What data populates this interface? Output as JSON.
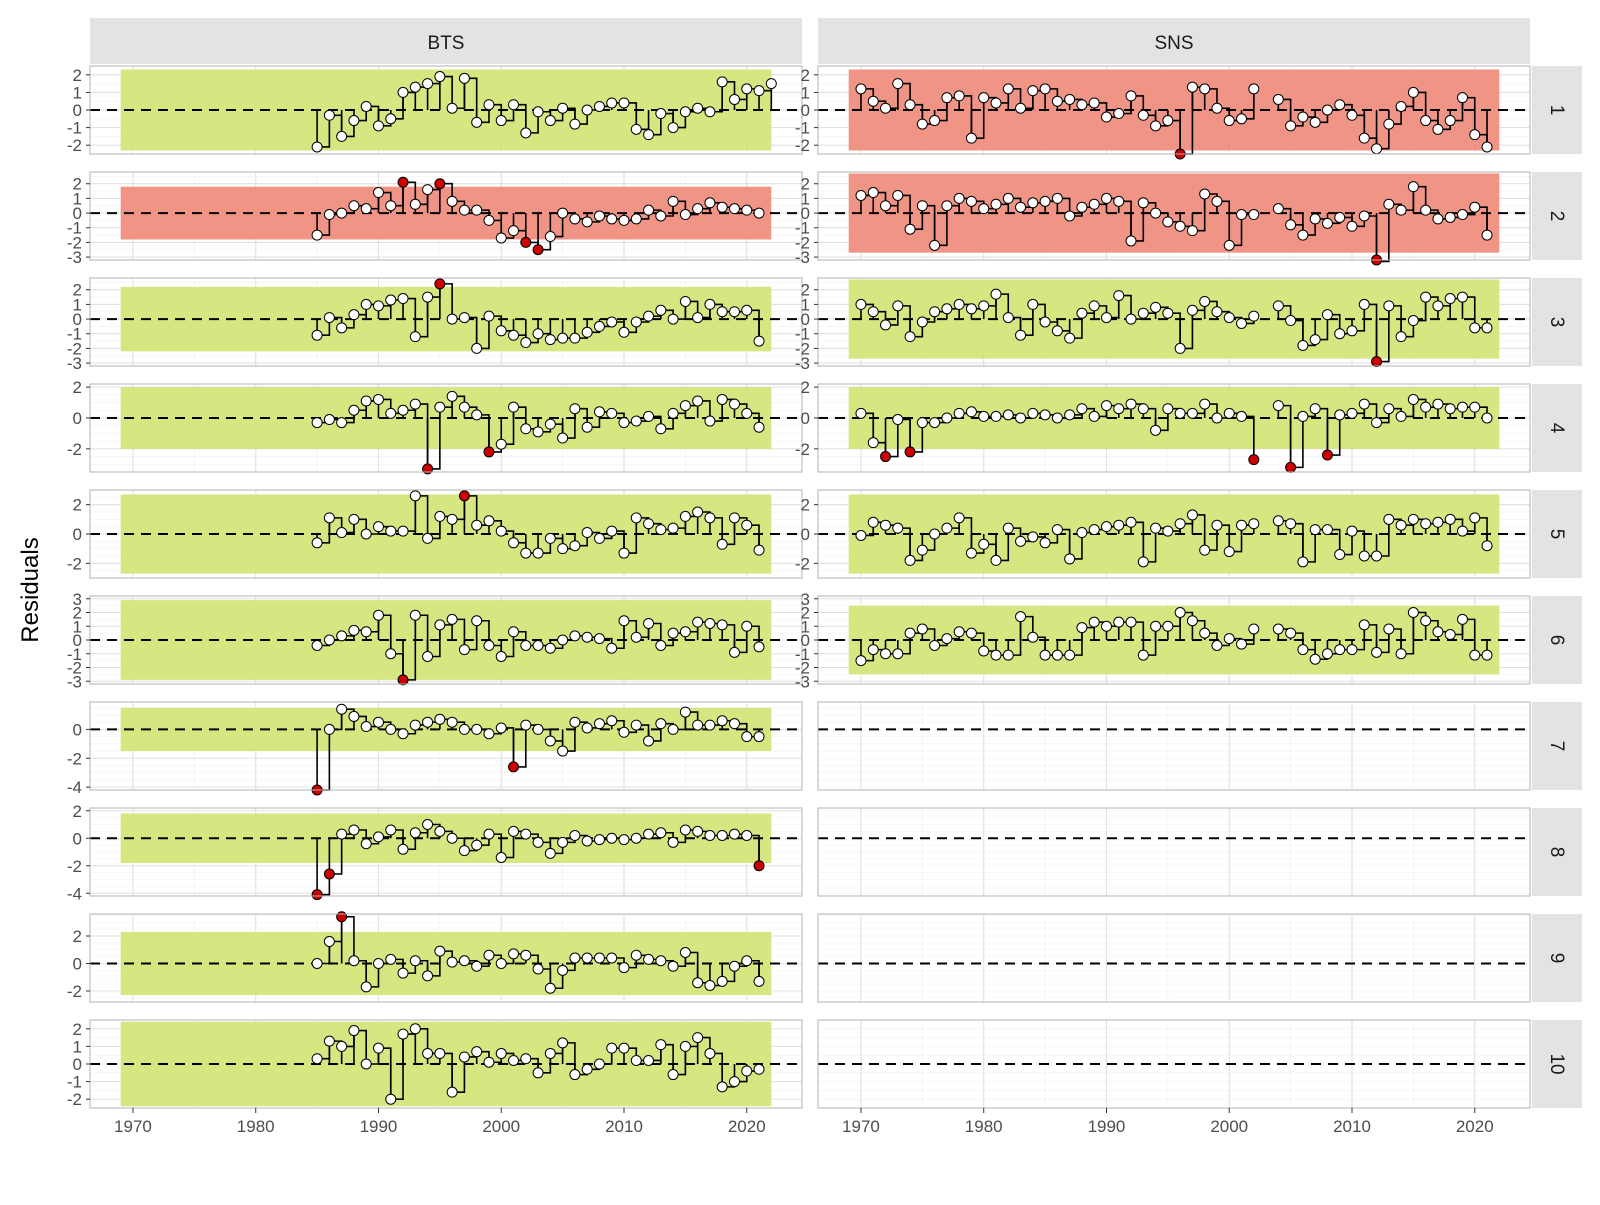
{
  "chart_data": {
    "type": "faceted-lollipop",
    "ylabel": "Residuals",
    "columns": [
      "BTS",
      "SNS"
    ],
    "rows": [
      "1",
      "2",
      "3",
      "4",
      "5",
      "6",
      "7",
      "8",
      "9",
      "10"
    ],
    "x_ticks": [
      1970,
      1980,
      1990,
      2000,
      2010,
      2020
    ],
    "xlim": [
      1966.5,
      2024.5
    ],
    "colors": {
      "ok": "#d4e57a",
      "bad": "#ef8e80",
      "outlier": "#cc0000",
      "point": "#ffffff",
      "strip": "#e3e3e3"
    },
    "panels": [
      {
        "survey": "BTS",
        "age": "1",
        "ylim": [
          -2.5,
          2.5
        ],
        "y_ticks": [
          -2,
          -1,
          0,
          1,
          2
        ],
        "band": [
          -2.3,
          2.3
        ],
        "status": "ok",
        "start": 1985,
        "values": [
          -2.1,
          -0.3,
          -1.5,
          -0.6,
          0.2,
          -0.9,
          -0.5,
          1.0,
          1.3,
          1.5,
          1.9,
          0.1,
          1.8,
          -0.7,
          0.3,
          -0.6,
          0.3,
          -1.3,
          -0.1,
          -0.6,
          0.1,
          -0.8,
          0.0,
          0.2,
          0.4,
          0.4,
          -1.1,
          -1.4,
          -0.2,
          -1.0,
          -0.1,
          0.1,
          -0.1,
          1.6,
          0.6,
          1.2,
          1.1,
          1.5
        ],
        "outliers": []
      },
      {
        "survey": "SNS",
        "age": "1",
        "ylim": [
          -2.5,
          2.5
        ],
        "y_ticks": [
          -2,
          -1,
          0,
          1,
          2
        ],
        "band": [
          -2.3,
          2.3
        ],
        "status": "bad",
        "start": 1970,
        "values": [
          1.2,
          0.5,
          0.1,
          1.5,
          0.3,
          -0.8,
          -0.6,
          0.7,
          0.8,
          -1.6,
          0.7,
          0.4,
          1.2,
          0.1,
          1.1,
          1.2,
          0.5,
          0.6,
          0.3,
          0.4,
          -0.4,
          -0.2,
          0.8,
          -0.3,
          -0.9,
          -0.6,
          -2.5,
          1.3,
          1.2,
          0.1,
          -0.6,
          -0.5,
          1.2,
          null,
          0.6,
          -0.9,
          -0.4,
          -0.7,
          0.0,
          0.3,
          -0.3,
          -1.6,
          -2.2,
          -0.8,
          0.2,
          1.0,
          -0.6,
          -1.1,
          -0.6,
          0.7,
          -1.4,
          -2.1
        ],
        "outliers": [
          1996
        ]
      },
      {
        "survey": "BTS",
        "age": "2",
        "ylim": [
          -3.2,
          2.8
        ],
        "y_ticks": [
          -3,
          -2,
          -1,
          0,
          1,
          2
        ],
        "band": [
          -1.8,
          1.8
        ],
        "status": "bad",
        "start": 1985,
        "values": [
          -1.5,
          -0.1,
          0.0,
          0.5,
          0.3,
          1.4,
          0.5,
          2.1,
          0.6,
          1.6,
          2.0,
          0.8,
          0.2,
          0.2,
          -0.5,
          -1.7,
          -1.2,
          -2.0,
          -2.5,
          -1.6,
          0.0,
          -0.4,
          -0.6,
          -0.2,
          -0.4,
          -0.5,
          -0.4,
          0.2,
          -0.2,
          0.8,
          -0.1,
          0.3,
          0.7,
          0.4,
          0.3,
          0.2,
          0.0
        ],
        "outliers": [
          1992,
          1995,
          2002,
          2003
        ]
      },
      {
        "survey": "SNS",
        "age": "2",
        "ylim": [
          -3.2,
          2.8
        ],
        "y_ticks": [
          -3,
          -2,
          -1,
          0,
          1,
          2
        ],
        "band": [
          -2.7,
          2.7
        ],
        "status": "bad",
        "start": 1970,
        "values": [
          1.2,
          1.4,
          0.5,
          1.2,
          -1.1,
          0.5,
          -2.2,
          0.5,
          1.0,
          0.8,
          0.3,
          0.6,
          1.0,
          0.4,
          0.7,
          0.8,
          1.0,
          -0.2,
          0.4,
          0.6,
          1.0,
          0.8,
          -1.9,
          0.7,
          0.0,
          -0.6,
          -0.9,
          -1.2,
          1.3,
          0.8,
          -2.2,
          -0.1,
          -0.1,
          null,
          0.3,
          -0.8,
          -1.5,
          -0.4,
          -0.7,
          -0.3,
          -0.9,
          -0.2,
          -3.3,
          0.6,
          0.2,
          1.8,
          0.2,
          -0.4,
          -0.3,
          -0.1,
          0.4,
          -1.5
        ],
        "outliers": [
          2012
        ]
      },
      {
        "survey": "BTS",
        "age": "3",
        "ylim": [
          -3.2,
          2.8
        ],
        "y_ticks": [
          -3,
          -2,
          -1,
          0,
          1,
          2
        ],
        "band": [
          -2.2,
          2.2
        ],
        "status": "ok",
        "start": 1985,
        "values": [
          -1.1,
          0.1,
          -0.6,
          0.3,
          1.0,
          0.9,
          1.3,
          1.4,
          -1.2,
          1.5,
          2.4,
          0.0,
          0.1,
          -2.0,
          0.2,
          -0.8,
          -1.1,
          -1.6,
          -1.0,
          -1.4,
          -1.3,
          -1.3,
          -0.9,
          -0.5,
          -0.2,
          -0.9,
          -0.2,
          0.2,
          0.6,
          0.0,
          1.2,
          0.1,
          1.0,
          0.5,
          0.5,
          0.6,
          -1.5
        ],
        "outliers": [
          1995
        ]
      },
      {
        "survey": "SNS",
        "age": "3",
        "ylim": [
          -3.2,
          2.8
        ],
        "y_ticks": [
          -3,
          -2,
          -1,
          0,
          1,
          2
        ],
        "band": [
          -2.7,
          2.7
        ],
        "status": "ok",
        "start": 1970,
        "values": [
          1.0,
          0.5,
          -0.4,
          0.9,
          -1.2,
          -0.2,
          0.5,
          0.7,
          1.0,
          0.7,
          0.9,
          1.7,
          0.1,
          -1.1,
          1.0,
          -0.2,
          -0.8,
          -1.3,
          0.4,
          0.9,
          0.1,
          1.6,
          0.0,
          0.4,
          0.8,
          0.4,
          -2.0,
          0.6,
          1.2,
          0.5,
          0.1,
          -0.3,
          0.2,
          null,
          0.9,
          -0.1,
          -1.8,
          -1.4,
          0.3,
          -1.0,
          -0.8,
          1.0,
          -2.9,
          0.9,
          -1.2,
          -0.1,
          1.5,
          0.9,
          1.4,
          1.5,
          -0.6,
          -0.6
        ],
        "outliers": [
          2012
        ]
      },
      {
        "survey": "BTS",
        "age": "4",
        "ylim": [
          -3.5,
          2.2
        ],
        "y_ticks": [
          -2,
          0,
          2
        ],
        "band": [
          -2.0,
          2.0
        ],
        "status": "ok",
        "start": 1985,
        "values": [
          -0.3,
          -0.1,
          -0.3,
          0.5,
          1.1,
          1.2,
          0.3,
          0.5,
          0.9,
          -3.3,
          0.7,
          1.4,
          0.7,
          0.2,
          -2.2,
          -1.7,
          0.7,
          -0.7,
          -0.9,
          -0.4,
          -1.3,
          0.6,
          -0.6,
          0.4,
          0.3,
          -0.3,
          -0.2,
          0.1,
          -0.7,
          0.3,
          0.8,
          1.1,
          -0.2,
          1.2,
          0.9,
          0.3,
          -0.6
        ],
        "outliers": [
          1994,
          1999
        ]
      },
      {
        "survey": "SNS",
        "age": "4",
        "ylim": [
          -3.5,
          2.2
        ],
        "y_ticks": [
          -2,
          0,
          2
        ],
        "band": [
          -2.0,
          2.0
        ],
        "status": "ok",
        "start": 1970,
        "values": [
          0.3,
          -1.6,
          -2.5,
          -0.1,
          -2.2,
          -0.3,
          -0.3,
          0.0,
          0.3,
          0.4,
          0.1,
          0.1,
          0.2,
          0.0,
          0.3,
          0.2,
          0.0,
          0.2,
          0.6,
          0.1,
          0.8,
          0.6,
          0.9,
          0.6,
          -0.8,
          0.6,
          0.3,
          0.3,
          0.9,
          0.0,
          0.3,
          0.1,
          -2.7,
          null,
          0.8,
          -3.2,
          0.1,
          0.6,
          -2.4,
          0.2,
          0.3,
          0.9,
          -0.3,
          0.6,
          0.1,
          1.2,
          0.7,
          0.9,
          0.6,
          0.7,
          0.7,
          0.0
        ],
        "outliers": [
          1972,
          1974,
          2002,
          2005,
          2008
        ]
      },
      {
        "survey": "BTS",
        "age": "5",
        "ylim": [
          -3.0,
          3.0
        ],
        "y_ticks": [
          -2,
          0,
          2
        ],
        "band": [
          -2.7,
          2.7
        ],
        "status": "ok",
        "start": 1985,
        "values": [
          -0.6,
          1.1,
          0.1,
          1.0,
          0.0,
          0.5,
          0.2,
          0.2,
          2.6,
          -0.3,
          1.2,
          1.0,
          2.6,
          0.6,
          0.9,
          0.2,
          -0.6,
          -1.3,
          -1.3,
          -0.3,
          -1.0,
          -0.8,
          0.1,
          -0.3,
          0.2,
          -1.3,
          1.1,
          0.7,
          0.3,
          0.4,
          1.2,
          1.5,
          1.1,
          -0.7,
          1.1,
          0.6,
          -1.1
        ],
        "outliers": [
          1997
        ]
      },
      {
        "survey": "SNS",
        "age": "5",
        "ylim": [
          -3.0,
          3.0
        ],
        "y_ticks": [
          -2,
          0,
          2
        ],
        "band": [
          -2.7,
          2.7
        ],
        "status": "ok",
        "start": 1970,
        "values": [
          -0.1,
          0.8,
          0.6,
          0.4,
          -1.8,
          -1.1,
          0.0,
          0.4,
          1.1,
          -1.3,
          -0.7,
          -1.8,
          0.4,
          -0.5,
          -0.2,
          -0.6,
          0.3,
          -1.7,
          0.1,
          0.3,
          0.5,
          0.6,
          0.8,
          -1.9,
          0.4,
          0.2,
          0.7,
          1.3,
          -1.1,
          0.6,
          -1.2,
          0.6,
          0.7,
          null,
          0.9,
          0.7,
          -1.9,
          0.3,
          0.3,
          -1.4,
          0.2,
          -1.5,
          -1.5,
          1.0,
          0.6,
          1.0,
          0.7,
          0.8,
          1.0,
          0.2,
          1.1,
          -0.8
        ],
        "outliers": []
      },
      {
        "survey": "BTS",
        "age": "6",
        "ylim": [
          -3.2,
          3.2
        ],
        "y_ticks": [
          -3,
          -2,
          -1,
          0,
          1,
          2,
          3
        ],
        "band": [
          -2.9,
          2.9
        ],
        "status": "ok",
        "start": 1985,
        "values": [
          -0.4,
          0.0,
          0.3,
          0.7,
          0.6,
          1.8,
          -1.0,
          -2.9,
          1.8,
          -1.2,
          1.1,
          1.5,
          -0.7,
          1.4,
          -0.4,
          -1.2,
          0.6,
          -0.4,
          -0.4,
          -0.6,
          0.0,
          0.3,
          0.2,
          0.1,
          -0.6,
          1.4,
          0.2,
          1.2,
          -0.4,
          0.5,
          0.6,
          1.3,
          1.2,
          1.1,
          -0.9,
          1.0,
          -0.5
        ],
        "outliers": [
          1992
        ]
      },
      {
        "survey": "SNS",
        "age": "6",
        "ylim": [
          -3.2,
          3.2
        ],
        "y_ticks": [
          -3,
          -2,
          -1,
          0,
          1,
          2,
          3
        ],
        "band": [
          -2.5,
          2.5
        ],
        "status": "ok",
        "start": 1970,
        "values": [
          -1.5,
          -0.7,
          -1.0,
          -1.0,
          0.5,
          0.8,
          -0.4,
          0.1,
          0.6,
          0.5,
          -0.8,
          -1.1,
          -1.1,
          1.7,
          0.2,
          -1.1,
          -1.1,
          -1.1,
          0.9,
          1.3,
          1.0,
          1.3,
          1.3,
          -1.1,
          1.0,
          1.0,
          2.0,
          1.4,
          0.5,
          -0.4,
          0.1,
          -0.3,
          0.8,
          null,
          0.8,
          0.5,
          -0.7,
          -1.4,
          -1.0,
          -0.7,
          -0.7,
          1.1,
          -0.9,
          0.8,
          -1.0,
          2.0,
          1.4,
          0.6,
          0.4,
          1.5,
          -1.1,
          -1.1
        ],
        "outliers": []
      },
      {
        "survey": "BTS",
        "age": "7",
        "ylim": [
          -4.2,
          1.9
        ],
        "y_ticks": [
          -4,
          -2,
          0
        ],
        "band": [
          -1.5,
          1.5
        ],
        "status": "ok",
        "start": 1985,
        "values": [
          -4.2,
          0.0,
          1.4,
          0.9,
          0.2,
          0.5,
          0.0,
          -0.3,
          0.3,
          0.5,
          0.7,
          0.5,
          0.0,
          0.0,
          -0.3,
          0.1,
          -2.6,
          0.3,
          0.0,
          -0.8,
          -1.5,
          0.5,
          0.1,
          0.4,
          0.6,
          -0.2,
          0.3,
          -0.8,
          0.4,
          0.0,
          1.2,
          0.3,
          0.3,
          0.6,
          0.4,
          -0.5,
          -0.5
        ],
        "outliers": [
          1985,
          2001
        ]
      },
      {
        "survey": "SNS",
        "age": "7",
        "ylim": [
          -4.2,
          1.9
        ],
        "y_ticks": [],
        "band": null,
        "status": "none",
        "start": 1970,
        "values": [],
        "outliers": []
      },
      {
        "survey": "BTS",
        "age": "8",
        "ylim": [
          -4.2,
          2.2
        ],
        "y_ticks": [
          -4,
          -2,
          0,
          2
        ],
        "band": [
          -1.8,
          1.8
        ],
        "status": "ok",
        "start": 1985,
        "values": [
          -4.1,
          -2.6,
          0.3,
          0.6,
          -0.4,
          0.1,
          0.6,
          -0.8,
          0.4,
          1.0,
          0.5,
          0.0,
          -0.9,
          -0.5,
          0.3,
          -1.4,
          0.5,
          0.3,
          -0.3,
          -1.1,
          -0.3,
          0.2,
          -0.2,
          -0.1,
          0.0,
          -0.1,
          0.0,
          0.3,
          0.4,
          -0.3,
          0.6,
          0.5,
          0.2,
          0.2,
          0.3,
          0.2,
          -2.0
        ],
        "outliers": [
          1985,
          1986,
          2021
        ]
      },
      {
        "survey": "SNS",
        "age": "8",
        "ylim": [
          -4.2,
          2.2
        ],
        "y_ticks": [],
        "band": null,
        "status": "none",
        "start": 1970,
        "values": [],
        "outliers": []
      },
      {
        "survey": "BTS",
        "age": "9",
        "ylim": [
          -2.8,
          3.6
        ],
        "y_ticks": [
          -2,
          0,
          2
        ],
        "band": [
          -2.3,
          2.3
        ],
        "status": "ok",
        "start": 1985,
        "values": [
          0.0,
          1.6,
          3.4,
          0.2,
          -1.7,
          0.0,
          0.3,
          -0.7,
          0.2,
          -0.9,
          0.9,
          0.1,
          0.2,
          -0.2,
          0.6,
          0.0,
          0.7,
          0.6,
          -0.4,
          -1.8,
          -0.5,
          0.4,
          0.4,
          0.4,
          0.4,
          -0.3,
          0.6,
          0.3,
          0.2,
          -0.2,
          0.8,
          -1.4,
          -1.6,
          -1.3,
          -0.2,
          0.2,
          -1.3
        ],
        "outliers": [
          1987
        ]
      },
      {
        "survey": "SNS",
        "age": "9",
        "ylim": [
          -2.8,
          3.6
        ],
        "y_ticks": [],
        "band": null,
        "status": "none",
        "start": 1970,
        "values": [],
        "outliers": []
      },
      {
        "survey": "BTS",
        "age": "10",
        "ylim": [
          -2.5,
          2.5
        ],
        "y_ticks": [
          -2,
          -1,
          0,
          1,
          2
        ],
        "band": [
          -2.4,
          2.4
        ],
        "status": "ok",
        "start": 1985,
        "values": [
          0.3,
          1.3,
          1.0,
          1.9,
          0.0,
          0.9,
          -2.0,
          1.7,
          2.0,
          0.6,
          0.6,
          -1.6,
          0.4,
          0.7,
          0.1,
          0.6,
          0.2,
          0.3,
          -0.5,
          0.6,
          1.2,
          -0.6,
          -0.3,
          0.0,
          0.9,
          0.9,
          0.2,
          0.2,
          1.1,
          -0.6,
          1.0,
          1.5,
          0.6,
          -1.3,
          -1.0,
          -0.4,
          -0.3
        ],
        "outliers": []
      },
      {
        "survey": "SNS",
        "age": "10",
        "ylim": [
          -2.5,
          2.5
        ],
        "y_ticks": [],
        "band": null,
        "status": "none",
        "start": 1970,
        "values": [],
        "outliers": []
      }
    ]
  }
}
